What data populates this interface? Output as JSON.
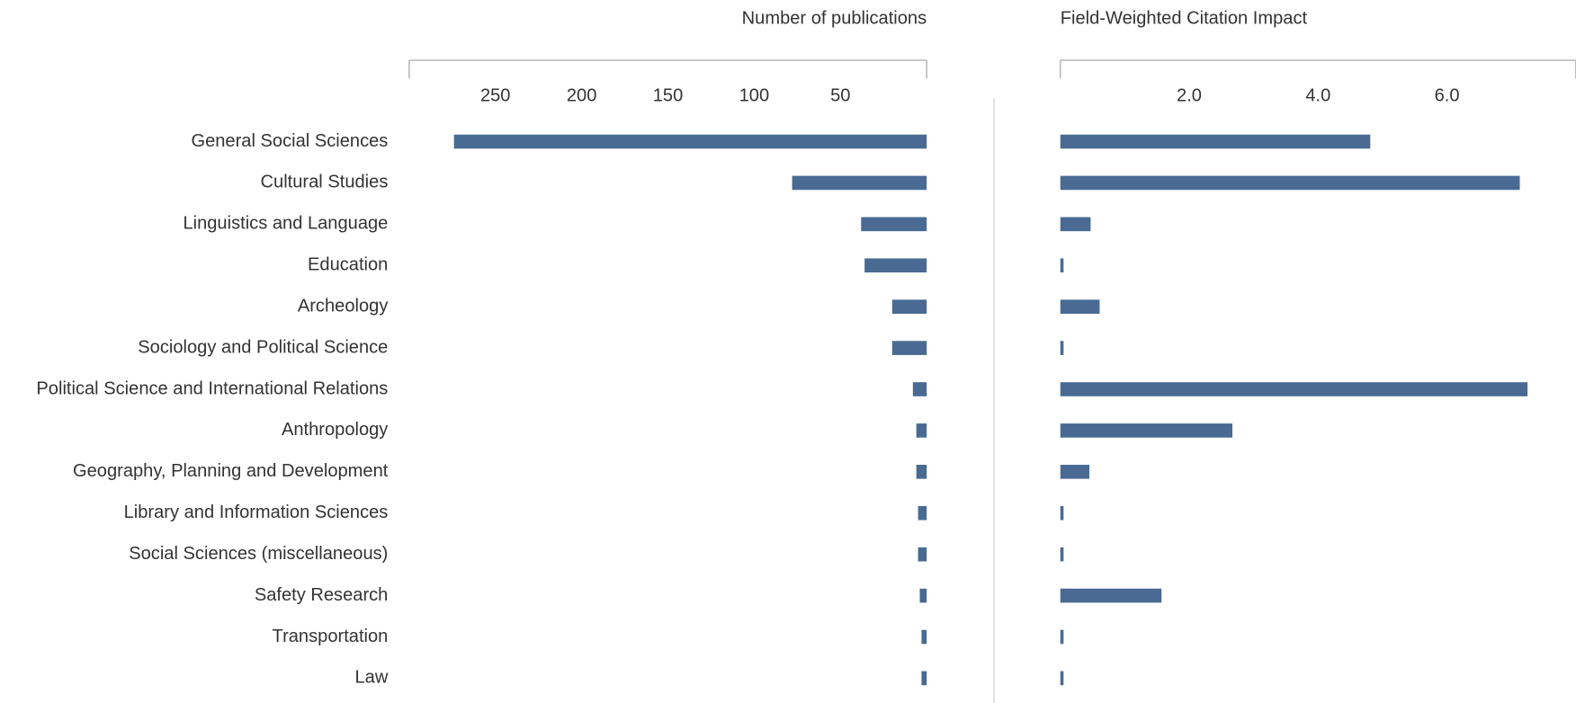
{
  "chart_data": [
    {
      "type": "barh",
      "title": "Number of publications",
      "categories": [
        "General Social Sciences",
        "Cultural Studies",
        "Linguistics and Language",
        "Education",
        "Archeology",
        "Sociology and Political Science",
        "Political Science and International Relations",
        "Anthropology",
        "Geography, Planning and Development",
        "Library and Information Sciences",
        "Social Sciences (miscellaneous)",
        "Safety Research",
        "Transportation",
        "Law"
      ],
      "values": [
        274,
        78,
        38,
        36,
        20,
        20,
        8,
        6,
        6,
        5,
        5,
        4,
        3,
        3
      ],
      "color": "#496a92",
      "xlim": [
        0,
        300
      ],
      "xticks": [
        50,
        100,
        150,
        200,
        250
      ],
      "x_inverted": true
    },
    {
      "type": "barh",
      "title": "Field-Weighted Citation Impact",
      "values": [
        4.81,
        7.13,
        0.47,
        0.05,
        0.61,
        0.05,
        7.25,
        2.67,
        0.45,
        0.05,
        0.05,
        1.57,
        0.05,
        0.05
      ],
      "color": "#496a92",
      "xlim": [
        0,
        8
      ],
      "xticks": [
        {
          "value": 2,
          "label": "2.0"
        },
        {
          "value": 4,
          "label": "4.0"
        },
        {
          "value": 6,
          "label": "6.0"
        }
      ]
    }
  ]
}
